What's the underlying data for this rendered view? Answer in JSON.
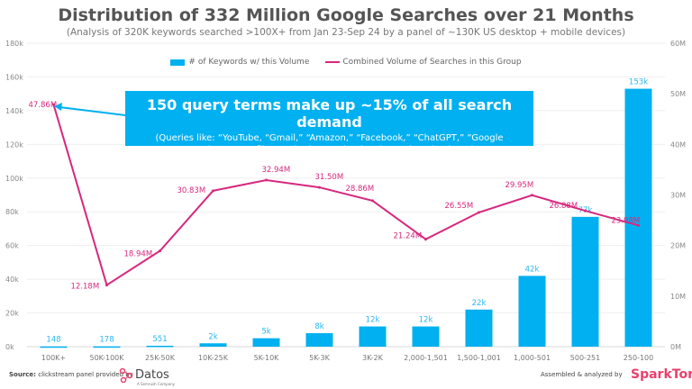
{
  "chart_data": {
    "type": "bar+line",
    "title": "Distribution of 332 Million Google Searches over 21 Months",
    "subtitle": "(Analysis of 320K keywords searched >100X+ from Jan 23-Sep 24 by a panel of ~130K US desktop + mobile devices)",
    "categories": [
      "100K+",
      "50K-100K",
      "25K-50K",
      "10K-25K",
      "5K-10K",
      "5K-3K",
      "3K-2K",
      "2,000-1,501",
      "1,500-1,001",
      "1,000-501",
      "500-251",
      "250-100"
    ],
    "series": [
      {
        "name": "# of Keywords w/ this Volume",
        "type": "bar",
        "axis": "left",
        "color": "#00b0f0",
        "values": [
          148,
          178,
          551,
          2000,
          5000,
          8000,
          12000,
          12000,
          22000,
          42000,
          77000,
          153000
        ],
        "labels": [
          "148",
          "178",
          "551",
          "2k",
          "5k",
          "8k",
          "12k",
          "12k",
          "22k",
          "42k",
          "77k",
          "153k"
        ]
      },
      {
        "name": "Combined Volume of Searches in this Group",
        "type": "line",
        "axis": "right",
        "color": "#d6287e",
        "values": [
          47.86,
          12.18,
          18.94,
          30.83,
          32.94,
          31.5,
          28.86,
          21.24,
          26.55,
          29.95,
          26.88,
          23.98
        ],
        "labels": [
          "47.86M",
          "12.18M",
          "18.94M",
          "30.83M",
          "32.94M",
          "31.50M",
          "28.86M",
          "21.24M",
          "26.55M",
          "29.95M",
          "26.88M",
          "23.98M"
        ]
      }
    ],
    "left_axis": {
      "ylim": [
        0,
        180000
      ],
      "ticks": [
        "0k",
        "20k",
        "40k",
        "60k",
        "80k",
        "100k",
        "120k",
        "140k",
        "160k",
        "180k"
      ]
    },
    "right_axis": {
      "ylim": [
        0,
        60
      ],
      "unit": "M",
      "ticks": [
        "0M",
        "10M",
        "20M",
        "30M",
        "40M",
        "50M",
        "60M"
      ]
    },
    "grid": true,
    "legend": "top-center"
  },
  "callout": {
    "headline": "150 query terms make up ~15% of all search demand",
    "detail": "(Queries like: “YouTube, “Gmail,” “Amazon,” “Facebook,” “ChatGPT,” “Google Translate,” “Netflix,” and other navigational searches dominate)"
  },
  "footer": {
    "source_label": "Source:",
    "source_text": "clickstream panel provided by",
    "datos": "Datos",
    "datos_sub": "A Semrush Company",
    "assembled": "Assembled & analyzed by",
    "sparktoro": "SparkToro"
  }
}
